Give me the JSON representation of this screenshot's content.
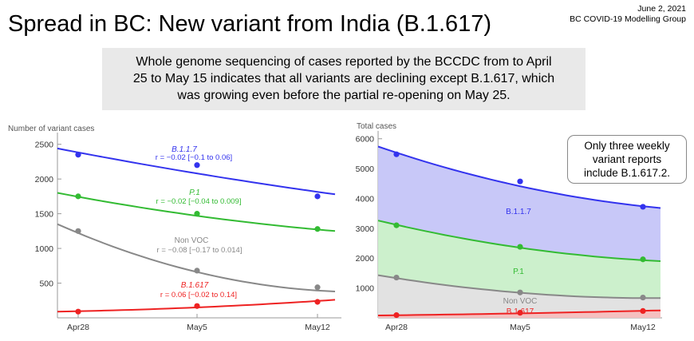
{
  "header": {
    "title": "Spread in BC: New variant from India (B.1.617)",
    "date": "June 2, 2021",
    "group": "BC COVID-19 Modelling Group"
  },
  "summary": {
    "line1": "Whole genome sequencing of cases reported by the BCCDC from to April",
    "line2": "25 to May 15 indicates that all variants are declining except B.1.617, which",
    "line3": "was growing even before the partial re-opening on May 25."
  },
  "callout": {
    "line1": "Only three weekly",
    "line2": "variant reports",
    "line3": "include B.1.617.2."
  },
  "chart_data": [
    {
      "type": "scatter",
      "ylabel": "Number of variant cases",
      "categories": [
        "Apr28",
        "May5",
        "May12"
      ],
      "yticks": [
        500,
        1000,
        1500,
        2000,
        2500
      ],
      "ylim": [
        0,
        2600
      ],
      "series": [
        {
          "name": "B.1.1.7",
          "color": "#3333ee",
          "points": [
            2350,
            2200,
            1750
          ],
          "fit": [
            2440,
            2080,
            1780
          ],
          "stat": "r = −0.02 [−0.1 to 0.06]"
        },
        {
          "name": "P.1",
          "color": "#33bb33",
          "points": [
            1750,
            1500,
            1280
          ],
          "fit": [
            1800,
            1470,
            1250
          ],
          "stat": "r = −0.02 [−0.04 to 0.009]"
        },
        {
          "name": "Non VOC",
          "color": "#888888",
          "points": [
            1250,
            680,
            440
          ],
          "fit": [
            1350,
            660,
            380
          ],
          "stat": "r = −0.08 [−0.17 to 0.014]"
        },
        {
          "name": "B.1.617",
          "color": "#ee2222",
          "points": [
            90,
            170,
            230
          ],
          "fit": [
            90,
            150,
            260
          ],
          "stat": "r = 0.06 [−0.02 to 0.14]"
        }
      ]
    },
    {
      "type": "area",
      "ylabel": "Total cases",
      "categories": [
        "Apr28",
        "May5",
        "May12"
      ],
      "yticks": [
        1000,
        2000,
        3000,
        4000,
        5000,
        6000
      ],
      "ylim": [
        0,
        6100
      ],
      "series": [
        {
          "name": "B.1.617",
          "color": "#ee2222",
          "fill": "#f5c0c0",
          "points": [
            90,
            170,
            230
          ],
          "fit": [
            80,
            150,
            250
          ]
        },
        {
          "name": "Non VOC",
          "color": "#888888",
          "fill": "#e2e2e2",
          "points": [
            1350,
            850,
            680
          ],
          "fit": [
            1430,
            840,
            660
          ]
        },
        {
          "name": "P.1",
          "color": "#33bb33",
          "fill": "#ccf0cc",
          "points": [
            3100,
            2380,
            1960
          ],
          "fit": [
            3260,
            2350,
            1900
          ]
        },
        {
          "name": "B.1.1.7",
          "color": "#3333ee",
          "fill": "#c8c8f8",
          "points": [
            5480,
            4570,
            3720
          ],
          "fit": [
            5740,
            4410,
            3680
          ]
        }
      ]
    }
  ]
}
